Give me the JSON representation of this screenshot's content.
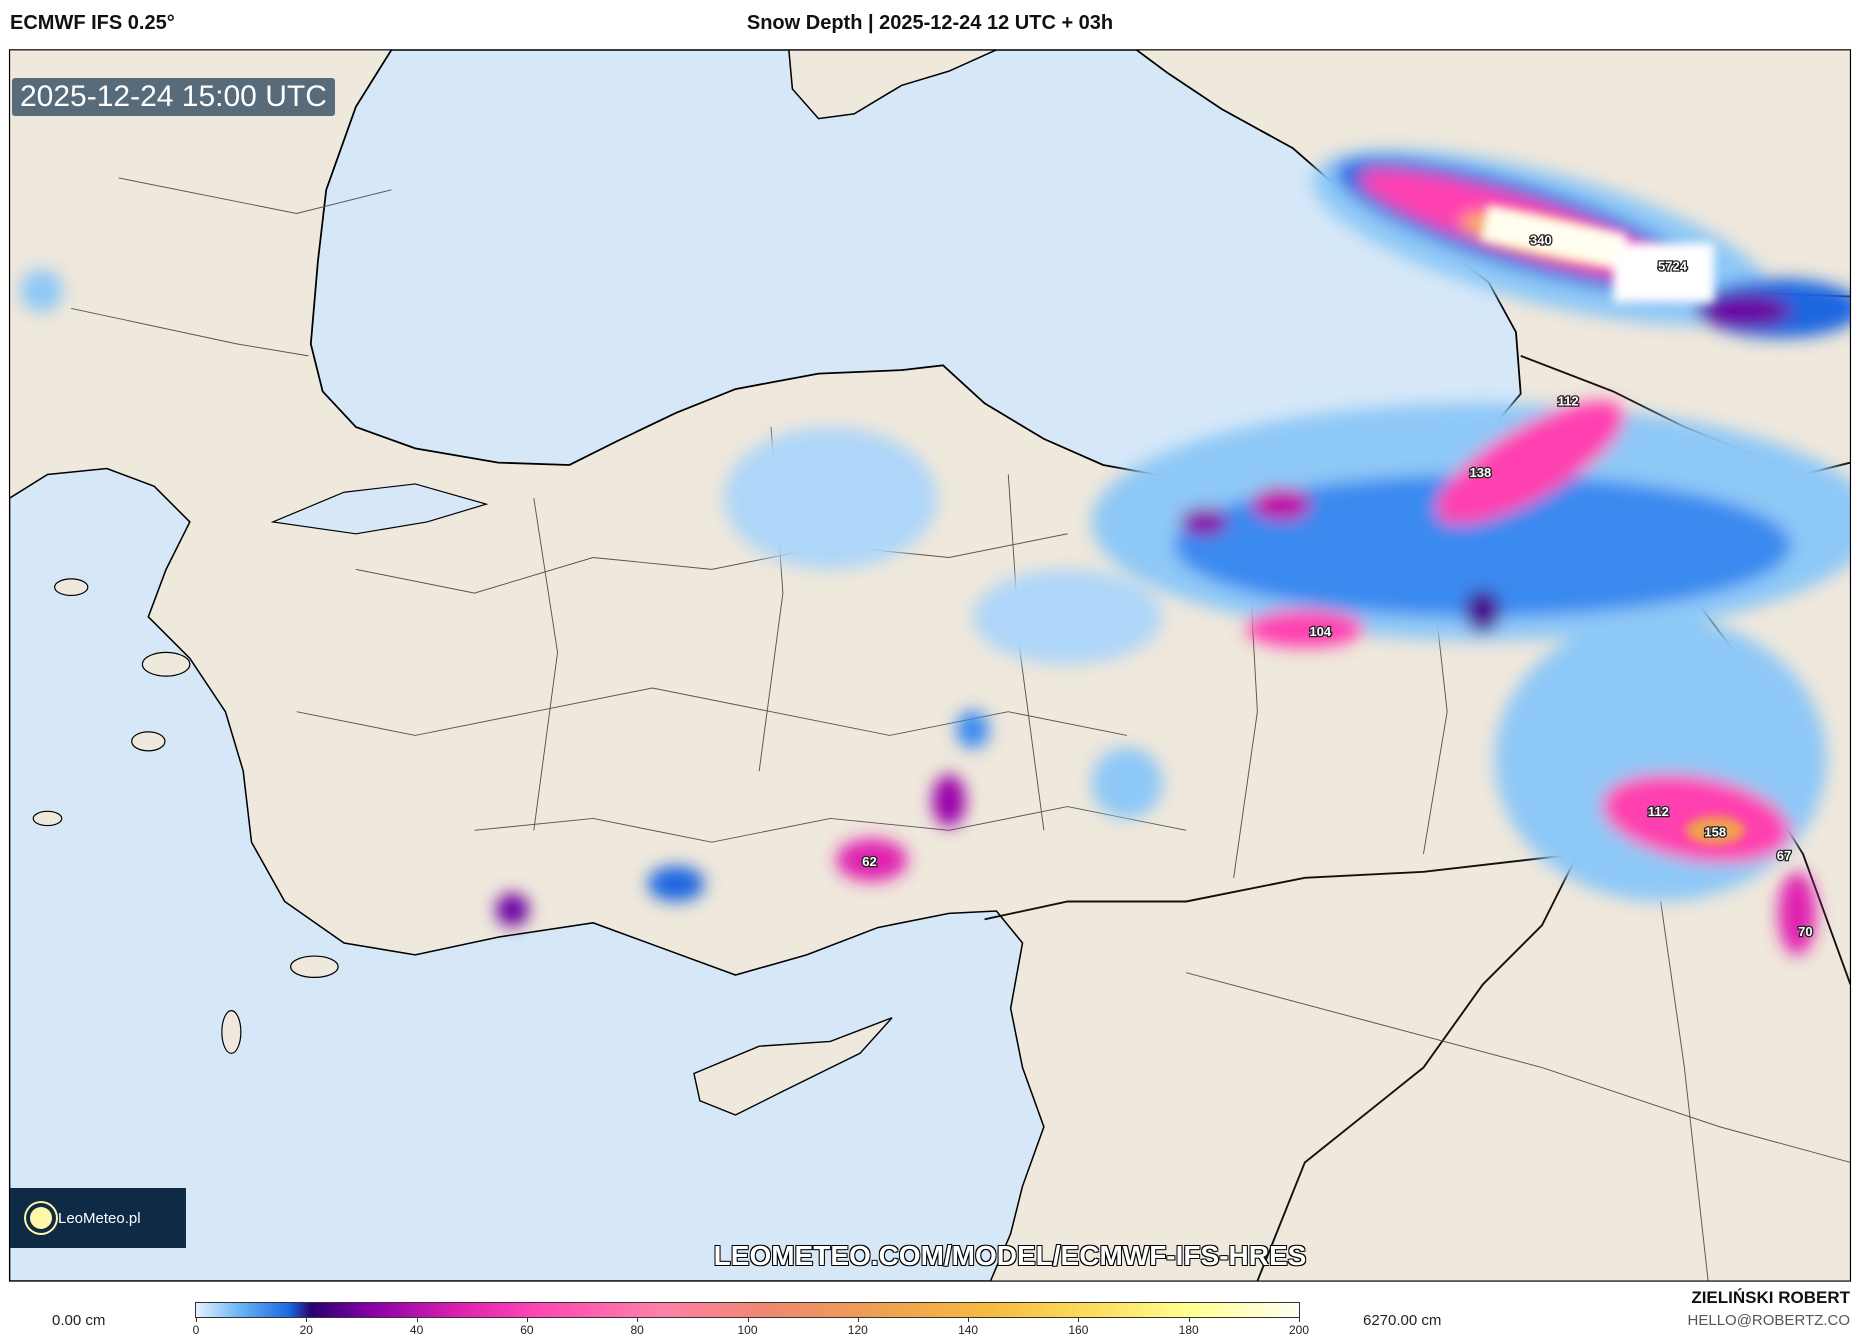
{
  "header": {
    "model": "ECMWF IFS 0.25°",
    "title": "Snow Depth | 2025-12-24 12 UTC + 03h"
  },
  "map": {
    "valid_time": "2025-12-24 15:00 UTC",
    "url_watermark": "LEOMETEO.COM/MODEL/ECMWF-IFS-HRES",
    "logo_text": "LeoMeteo.pl",
    "colors": {
      "sea": "#d6e8f8",
      "land": "#efe8dc"
    },
    "labels": [
      "340",
      "5724",
      "112",
      "138",
      "104",
      "62",
      "112",
      "158",
      "67",
      "70"
    ]
  },
  "colorbar": {
    "min_label": "0.00 cm",
    "max_label": "6270.00 cm",
    "ticks": [
      "0",
      "20",
      "40",
      "60",
      "80",
      "100",
      "120",
      "140",
      "160",
      "180",
      "200"
    ]
  },
  "credits": {
    "author": "ZIELIŃSKI ROBERT",
    "email": "HELLO@ROBERTZ.CO"
  }
}
